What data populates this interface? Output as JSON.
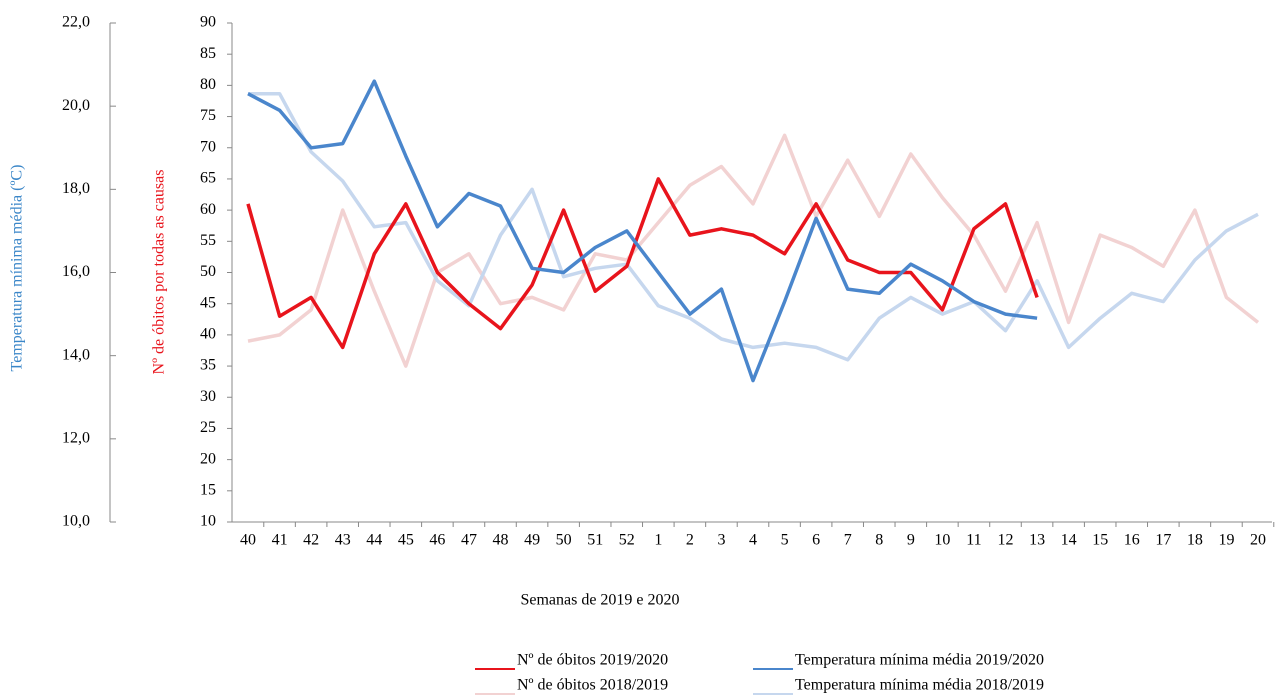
{
  "chart_data": {
    "type": "line",
    "x_label": "Semanas de 2019 e 2020",
    "y_label": "Nº de óbitos por todas as causas",
    "y2_label": "Temperatura mínima média (ºC)",
    "categories": [
      "40",
      "41",
      "42",
      "43",
      "44",
      "45",
      "46",
      "47",
      "48",
      "49",
      "50",
      "51",
      "52",
      "1",
      "2",
      "3",
      "4",
      "5",
      "6",
      "7",
      "8",
      "9",
      "10",
      "11",
      "12",
      "13",
      "14",
      "15",
      "16",
      "17",
      "18",
      "19",
      "20"
    ],
    "ylim": [
      10,
      90
    ],
    "yticks": [
      10,
      15,
      20,
      25,
      30,
      35,
      40,
      45,
      50,
      55,
      60,
      65,
      70,
      75,
      80,
      85,
      90
    ],
    "y2lim": [
      10,
      22
    ],
    "y2ticks": [
      {
        "value": 10,
        "label": "10,0"
      },
      {
        "value": 12,
        "label": "12,0"
      },
      {
        "value": 14,
        "label": "14,0"
      },
      {
        "value": 16,
        "label": "16,0"
      },
      {
        "value": 18,
        "label": "18,0"
      },
      {
        "value": 20,
        "label": "20,0"
      },
      {
        "value": 22,
        "label": "22,0"
      }
    ],
    "series": [
      {
        "name": "Nº de óbitos 2018/2019",
        "color": "#f2d2d2",
        "values": [
          39,
          40,
          44,
          60,
          47,
          35,
          50,
          53,
          45,
          46,
          44,
          53,
          52,
          58,
          64,
          67,
          61,
          72,
          59,
          68,
          59,
          69,
          62,
          56,
          47,
          58,
          42,
          56,
          54,
          51,
          60,
          46,
          42
        ]
      },
      {
        "name": "Temperatura mínima média 2018/2019",
        "color": "#c6d7ee",
        "axis": "y2",
        "values": [
          20.3,
          20.3,
          18.9,
          18.2,
          17.1,
          17.2,
          15.8,
          15.2,
          16.9,
          18.0,
          15.9,
          16.1,
          16.2,
          15.2,
          14.9,
          14.4,
          14.2,
          14.3,
          14.2,
          13.9,
          14.9,
          15.4,
          15.0,
          15.3,
          14.6,
          15.8,
          14.2,
          14.9,
          15.5,
          15.3,
          16.3,
          17.0,
          17.4
        ]
      },
      {
        "name": "Nº de óbitos 2019/2020",
        "color": "#e8141c",
        "values": [
          61,
          43,
          46,
          38,
          53,
          61,
          50,
          45,
          41,
          48,
          60,
          47,
          51,
          65,
          56,
          57,
          56,
          53,
          61,
          52,
          50,
          50,
          44,
          57,
          61,
          46,
          null,
          null,
          null,
          null,
          null,
          null,
          null
        ]
      },
      {
        "name": "Temperatura mínima média 2019/2020",
        "color": "#4a86cc",
        "axis": "y2",
        "values": [
          20.3,
          19.9,
          19.0,
          19.1,
          20.6,
          18.8,
          17.1,
          17.9,
          17.6,
          16.1,
          16.0,
          16.6,
          17.0,
          16.0,
          15.0,
          15.6,
          13.4,
          15.3,
          17.3,
          15.6,
          15.5,
          16.2,
          15.8,
          15.3,
          15.0,
          14.9,
          null,
          null,
          null,
          null,
          null,
          null,
          null
        ]
      }
    ],
    "legend_order": [
      2,
      3,
      0,
      1
    ]
  }
}
